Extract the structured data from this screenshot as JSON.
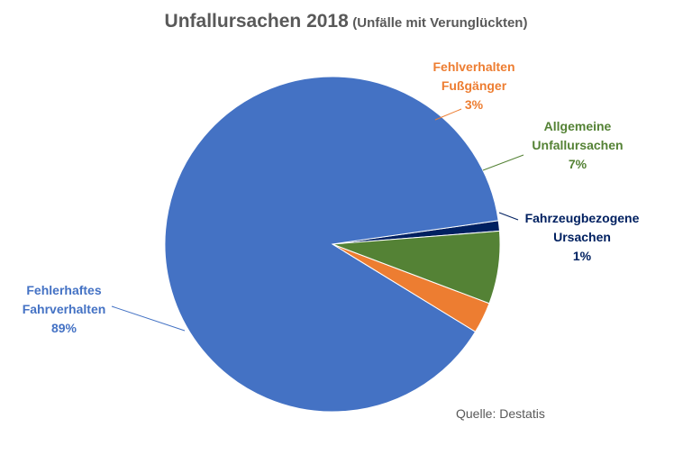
{
  "chart_data": {
    "type": "pie",
    "title": "Unfallursachen 2018",
    "subtitle": "(Unfälle mit Verunglückten)",
    "slices": [
      {
        "label_lines": [
          "Fehlerhaftes",
          "Fahrverhalten"
        ],
        "value": 89,
        "pct_label": "89%",
        "color": "#4472C4",
        "label_color": "#4472C4"
      },
      {
        "label_lines": [
          "Fehlverhalten",
          "Fußgänger"
        ],
        "value": 3,
        "pct_label": "3%",
        "color": "#ED7D31",
        "label_color": "#ED7D31"
      },
      {
        "label_lines": [
          "Allgemeine",
          "Unfallursachen"
        ],
        "value": 7,
        "pct_label": "7%",
        "color": "#548235",
        "label_color": "#548235"
      },
      {
        "label_lines": [
          "Fahrzeugbezogene",
          "Ursachen"
        ],
        "value": 1,
        "pct_label": "1%",
        "color": "#002060",
        "label_color": "#002060"
      }
    ]
  },
  "source": "Quelle: Destatis"
}
